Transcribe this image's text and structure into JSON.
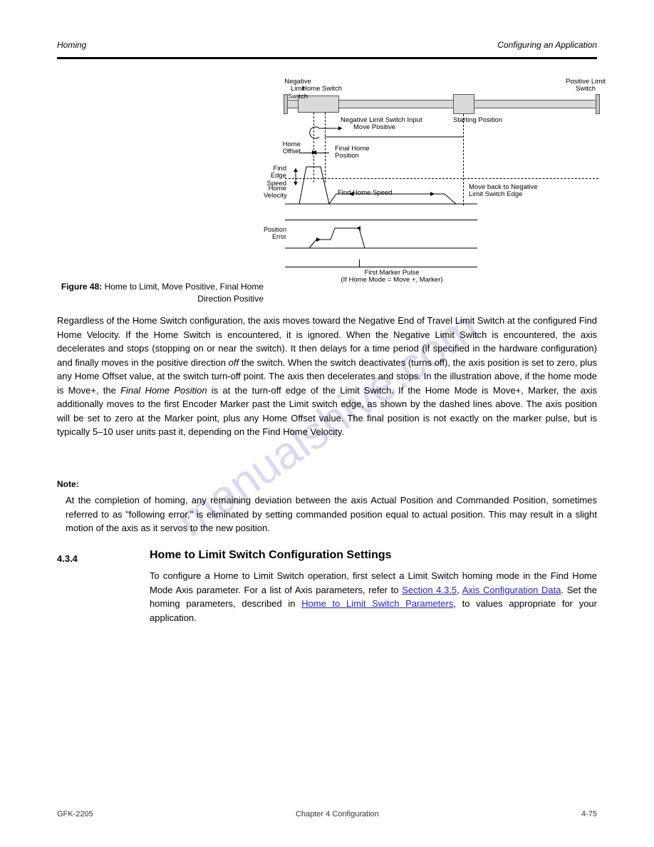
{
  "header": {
    "left": "Homing",
    "right": "Configuring an Application"
  },
  "figure": {
    "caption_a": "Figure 48:",
    "caption_b": "Home to Limit, Move Positive, Final Home Direction Positive",
    "labels": {
      "neg_limit": "Negative Limit\nSwitch",
      "home_switch": "Home Switch",
      "pos_limit": "Positive Limit\nSwitch",
      "neg_limit_input": "Negative Limit Switch Input",
      "start_pos": "Starting Position",
      "move_pos": "Move Positive",
      "final_home": "Final Home\nPosition",
      "move_back_neg": "Move back to Negative\nLimit Switch Edge",
      "find_edge_speed": "Find\nEdge\nSpeed",
      "find_home_speed": "Find Home Speed",
      "home_offset": "Home\nOffset",
      "home_velocity": "Home\nVelocity",
      "pos_error": "Position Error",
      "marker_pulse": "First Marker Pulse\n(If Home Mode = Move +, Marker)"
    }
  },
  "paragraphs": {
    "p1_a": "Regardless of the Home Switch configuration, the axis moves toward the Negative End of Travel Limit Switch at the configured Find Home Velocity. If the Home Switch is encountered, it is ignored. When the Negative Limit Switch is encountered, the axis decelerates and stops (stopping on or near the switch). It then delays for a time period (if specified in the hardware configuration) and finally moves in the positive direction ",
    "p1_b": "off",
    "p1_c": " the switch. When the switch deactivates (turns off), the axis position is set to zero, plus any Home Offset value, at the switch turn-off point. The axis then decelerates and stops. In the illustration above, if the home mode is Move+, the ",
    "p1_d": "Final Home Position",
    "p1_e": " is at the turn-off edge of the Limit Switch. If the Home Mode is Move+, Marker, the axis additionally moves to the first Encoder Marker past the Limit switch edge, as shown by the dashed lines above. The axis position will be set to zero at the Marker point, plus any Home Offset value. The final position is not exactly on the marker pulse, but is typically 5–10 user units past it, depending on the Find Home Velocity."
  },
  "note": {
    "label": "Note:",
    "body": "At the completion of homing, any remaining deviation between the axis Actual Position and Commanded Position, sometimes referred to as \"following error,\" is eliminated by setting commanded position equal to actual position. This may result in a slight motion of the axis as it servos to the new position."
  },
  "section": {
    "heading": "Home to Limit Switch Configuration Settings",
    "body_a": "To configure a Home to Limit Switch operation, first select a Limit Switch homing mode in the Find Home Mode Axis parameter. For a list of Axis parameters, refer to ",
    "body_b": "Section 4.3.5",
    "body_c": ", ",
    "body_d": "Axis Configuration Data",
    "body_e": ". Set the homing parameters, described in ",
    "body_f": "Home to Limit Switch Parameters",
    "body_g": ", to values appropriate for your application."
  },
  "sidebar": {
    "title": "4.3.4",
    "sub": "Home to Limit Switch Configuration Settings"
  },
  "footer": {
    "left": "GFK-2205",
    "center": "Chapter 4 Configuration",
    "right": "4-75"
  },
  "watermark": "manualshive.com"
}
